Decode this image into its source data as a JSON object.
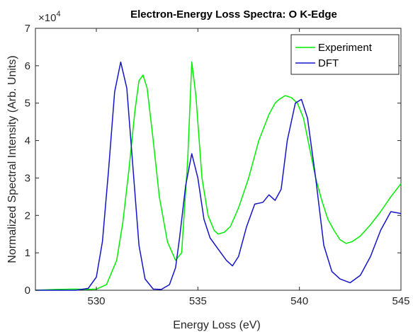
{
  "chart_data": {
    "type": "line",
    "title": "Electron-Energy Loss Spectra: O K-Edge",
    "xlabel": "Energy Loss (eV)",
    "ylabel": "Normalized Spectral Intensity (Arb. Units)",
    "xlim": [
      527,
      545
    ],
    "ylim": [
      0,
      70000
    ],
    "xticks": [
      530,
      535,
      540,
      545
    ],
    "yticks": [
      0,
      10000,
      20000,
      30000,
      40000,
      50000,
      60000,
      70000
    ],
    "ytick_labels": [
      "0",
      "1",
      "2",
      "3",
      "4",
      "5",
      "6",
      "7"
    ],
    "y_multiplier_base": "×10",
    "y_multiplier_exp": "4",
    "grid": false,
    "legend": "top-right",
    "series": [
      {
        "name": "Experiment",
        "color": "#00ee00",
        "x": [
          527.0,
          528.0,
          529.0,
          529.5,
          530.0,
          530.5,
          531.0,
          531.3,
          531.6,
          531.9,
          532.1,
          532.3,
          532.5,
          532.8,
          533.1,
          533.5,
          533.9,
          534.2,
          534.5,
          534.7,
          534.9,
          535.2,
          535.5,
          535.8,
          536.0,
          536.3,
          536.6,
          537.0,
          537.5,
          538.0,
          538.5,
          538.8,
          539.0,
          539.3,
          539.6,
          539.9,
          540.2,
          540.5,
          540.8,
          541.1,
          541.4,
          541.7,
          542.0,
          542.3,
          542.6,
          543.0,
          543.5,
          544.0,
          544.5,
          545.0
        ],
        "y": [
          0,
          200,
          300,
          200,
          300,
          1500,
          8000,
          18000,
          32000,
          48000,
          56000,
          57500,
          54000,
          40000,
          25000,
          13000,
          8000,
          10000,
          35000,
          61000,
          52000,
          30000,
          20000,
          16000,
          15000,
          15500,
          17000,
          22000,
          30000,
          40000,
          47000,
          50000,
          51000,
          52000,
          51500,
          50000,
          46000,
          38000,
          30000,
          24000,
          19000,
          16000,
          13500,
          12500,
          13000,
          14500,
          17500,
          21000,
          25000,
          28500
        ]
      },
      {
        "name": "DFT",
        "color": "#1414c8",
        "x": [
          527.0,
          529.0,
          529.6,
          530.0,
          530.3,
          530.6,
          530.9,
          531.2,
          531.5,
          531.8,
          532.1,
          532.4,
          532.8,
          533.2,
          533.6,
          533.9,
          534.1,
          534.4,
          534.7,
          535.0,
          535.3,
          535.6,
          536.0,
          536.4,
          536.7,
          537.0,
          537.4,
          537.8,
          538.2,
          538.5,
          538.8,
          539.1,
          539.4,
          539.8,
          540.1,
          540.4,
          540.8,
          541.2,
          541.6,
          542.0,
          542.5,
          543.0,
          543.5,
          544.0,
          544.5,
          545.0
        ],
        "y": [
          0,
          0,
          500,
          3500,
          13000,
          32000,
          53000,
          61000,
          54000,
          33000,
          12000,
          3000,
          300,
          200,
          1500,
          6000,
          14000,
          28000,
          36500,
          30000,
          19000,
          14000,
          11000,
          8000,
          6500,
          9000,
          17000,
          23000,
          23500,
          25500,
          24000,
          27000,
          40000,
          50000,
          51000,
          46000,
          30000,
          12000,
          5000,
          3000,
          2000,
          4000,
          9000,
          16000,
          21000,
          20500
        ]
      }
    ]
  }
}
